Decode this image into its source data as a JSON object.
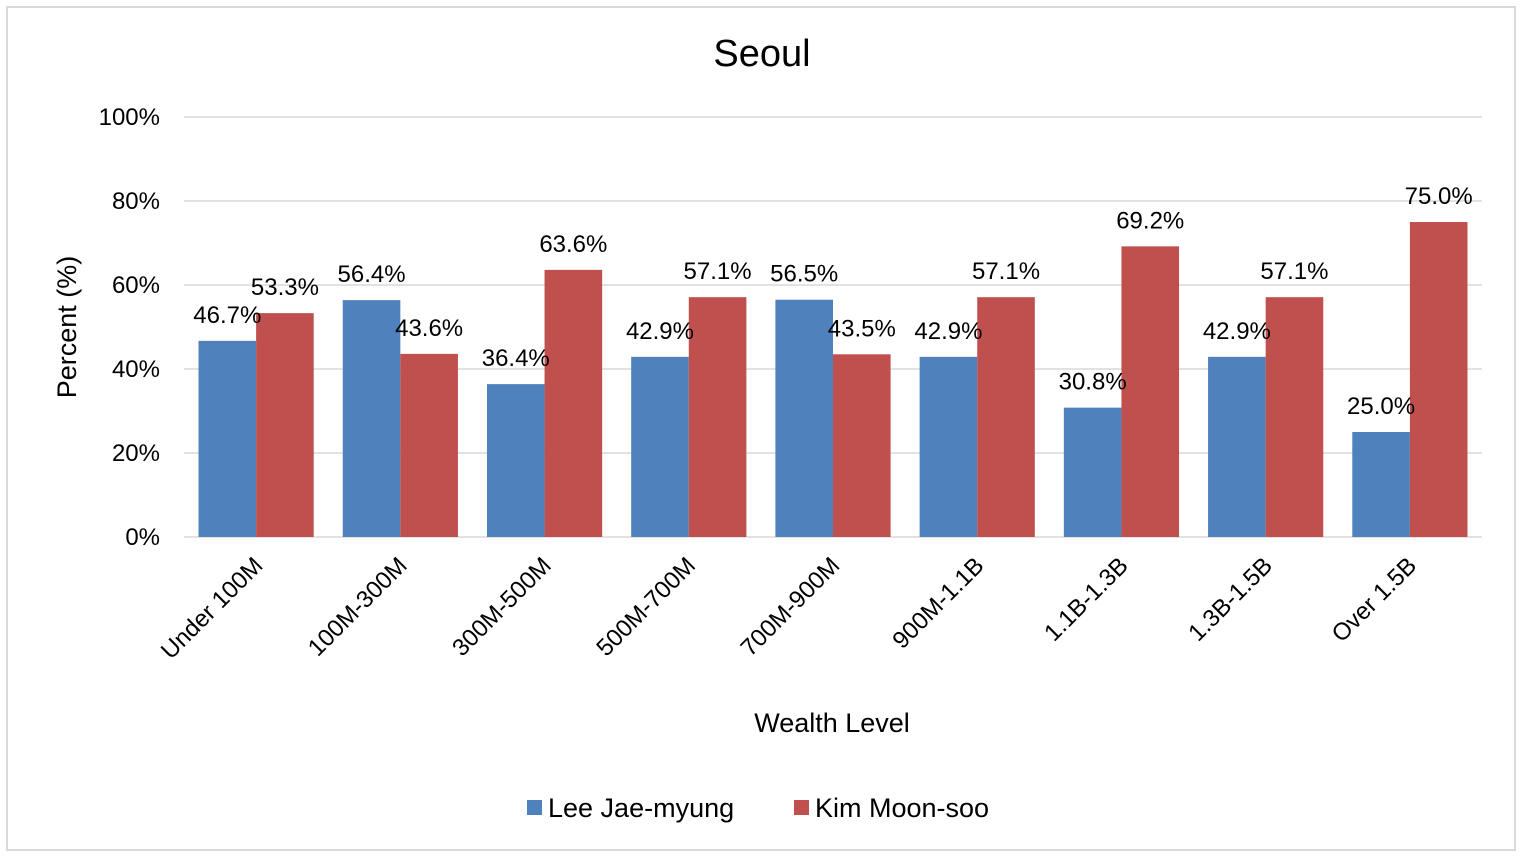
{
  "chart_data": {
    "type": "bar",
    "title": "Seoul",
    "xlabel": "Wealth Level",
    "ylabel": "Percent (%)",
    "ylim": [
      0,
      100
    ],
    "yticks": [
      "0%",
      "20%",
      "40%",
      "60%",
      "80%",
      "100%"
    ],
    "ytick_values": [
      0,
      20,
      40,
      60,
      80,
      100
    ],
    "grid": true,
    "legend_position": "bottom",
    "categories": [
      "Under 100M",
      "100M-300M",
      "300M-500M",
      "500M-700M",
      "700M-900M",
      "900M-1.1B",
      "1.1B-1.3B",
      "1.3B-1.5B",
      "Over 1.5B"
    ],
    "series": [
      {
        "name": "Lee Jae-myung",
        "color": "#4f81bd",
        "values": [
          46.7,
          56.4,
          36.4,
          42.9,
          56.5,
          42.9,
          30.8,
          42.9,
          25.0
        ],
        "labels": [
          "46.7%",
          "56.4%",
          "36.4%",
          "42.9%",
          "56.5%",
          "42.9%",
          "30.8%",
          "42.9%",
          "25.0%"
        ]
      },
      {
        "name": "Kim Moon-soo",
        "color": "#c0504d",
        "values": [
          53.3,
          43.6,
          63.6,
          57.1,
          43.5,
          57.1,
          69.2,
          57.1,
          75.0
        ],
        "labels": [
          "53.3%",
          "43.6%",
          "63.6%",
          "57.1%",
          "43.5%",
          "57.1%",
          "69.2%",
          "57.1%",
          "75.0%"
        ]
      }
    ]
  }
}
